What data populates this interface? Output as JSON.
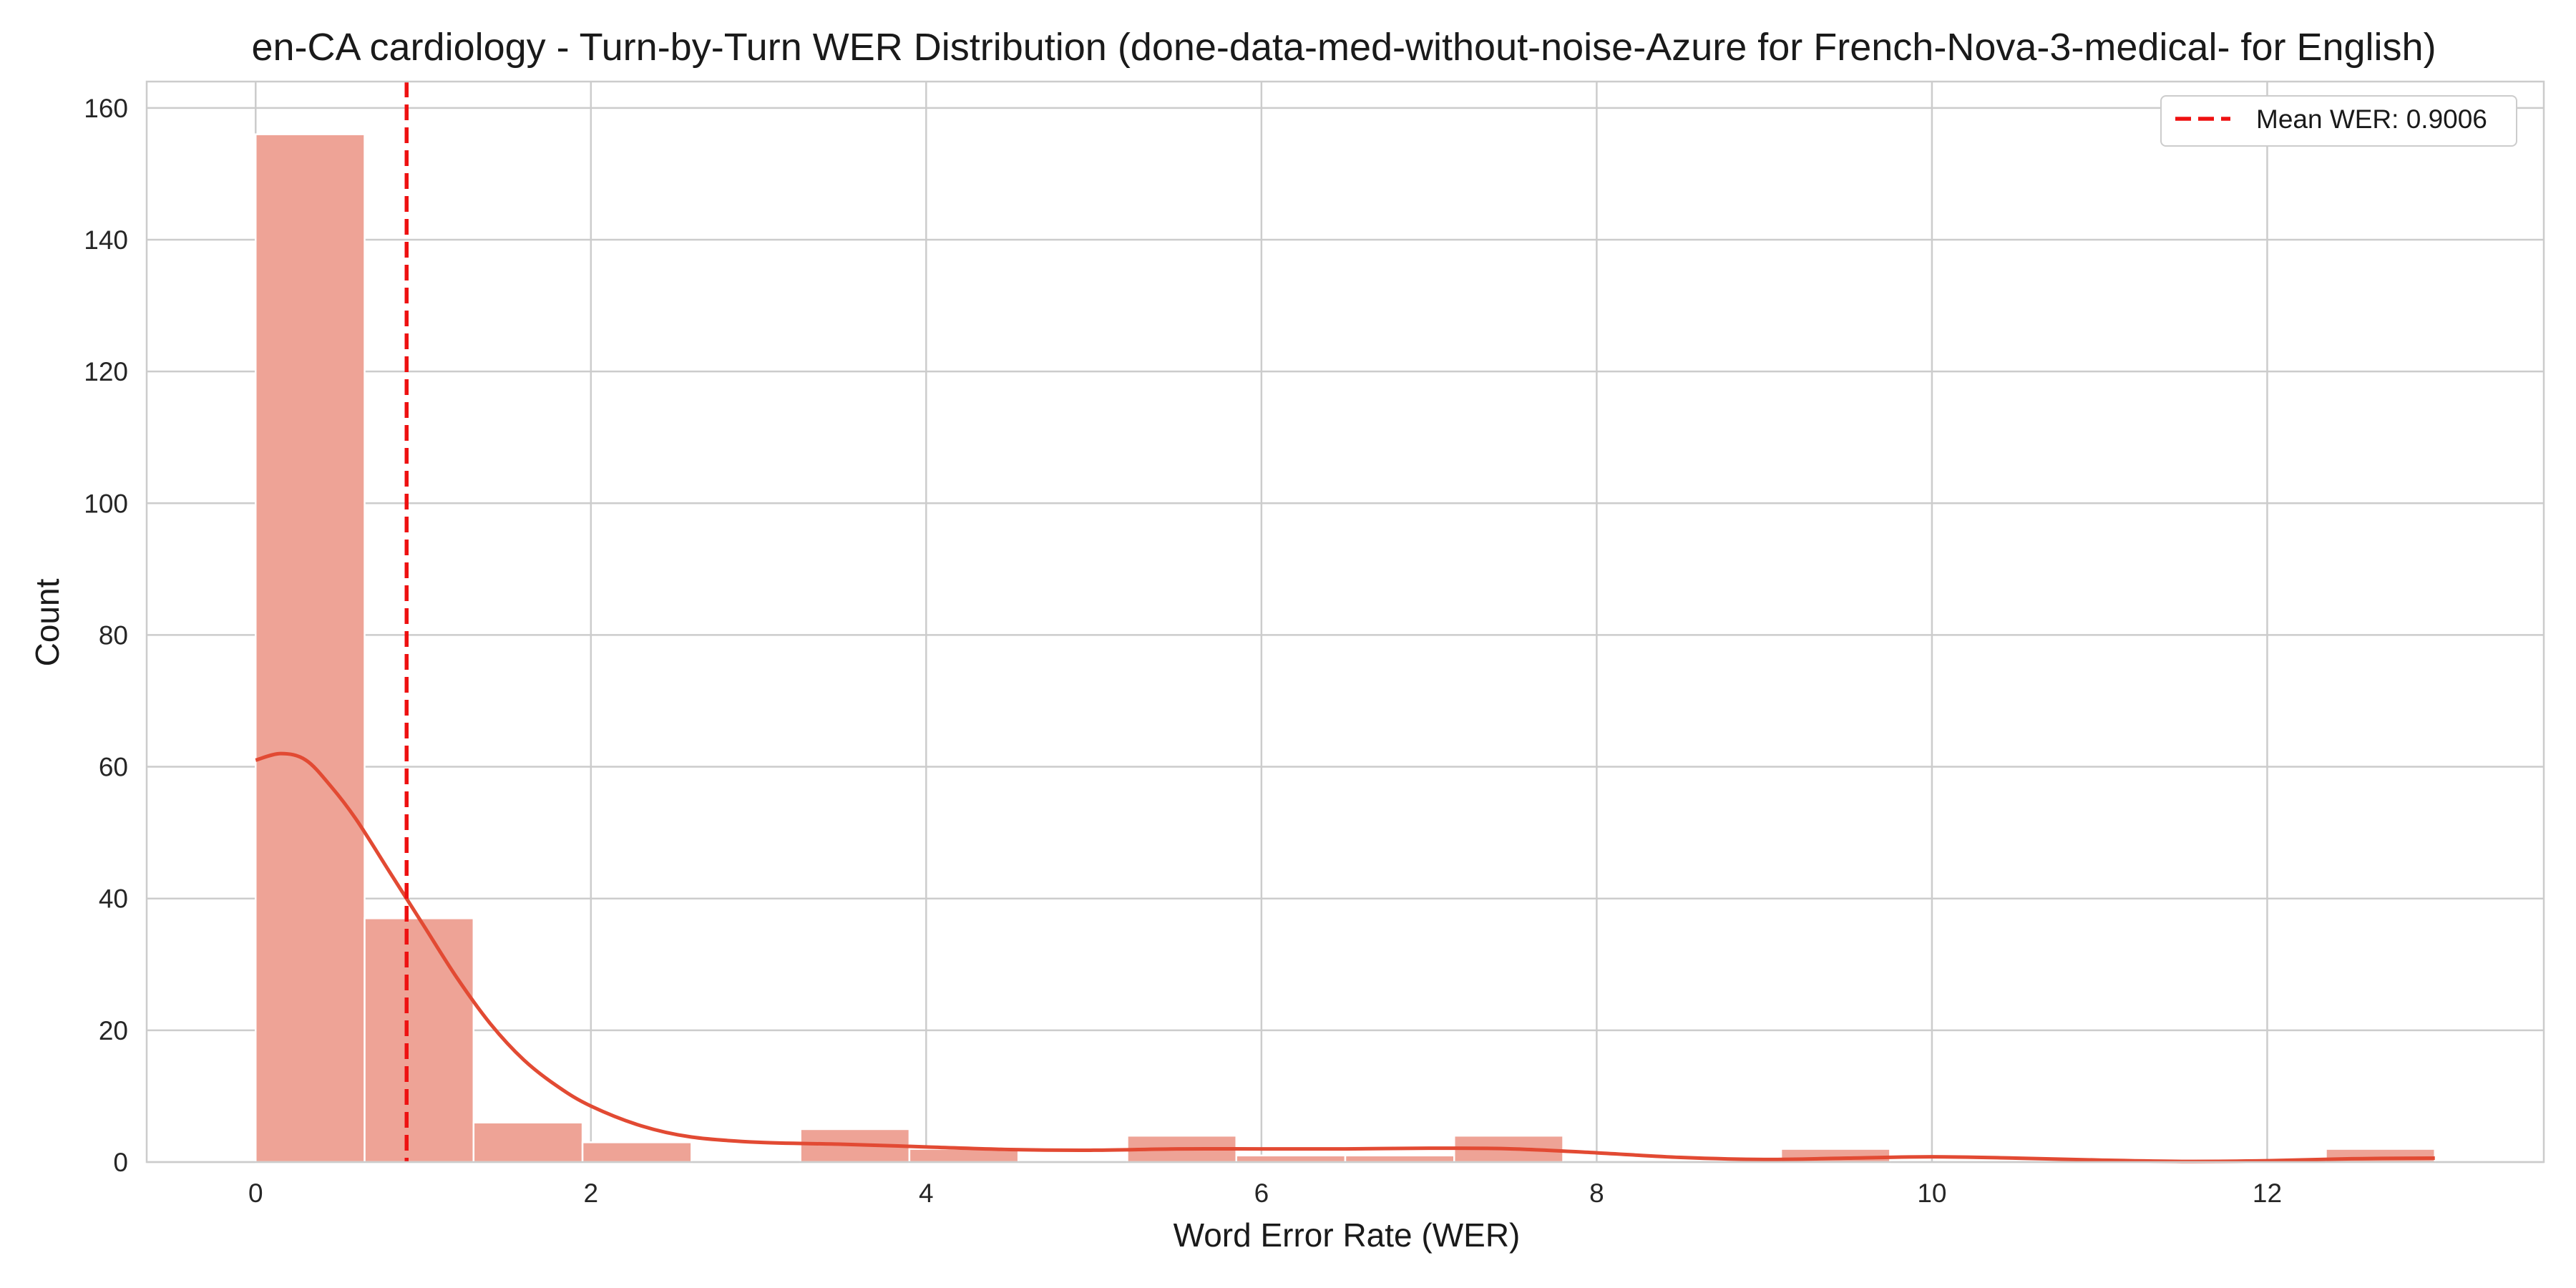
{
  "chart_data": {
    "type": "bar",
    "title": "en-CA cardiology - Turn-by-Turn WER Distribution (done-data-med-without-noise-Azure for French-Nova-3-medical- for English)",
    "xlabel": "Word Error Rate (WER)",
    "ylabel": "Count",
    "xlim": [
      -0.65,
      13.65
    ],
    "ylim": [
      0,
      164
    ],
    "x_ticks": [
      0,
      2,
      4,
      6,
      8,
      10,
      12
    ],
    "y_ticks": [
      0,
      20,
      40,
      60,
      80,
      100,
      120,
      140,
      160
    ],
    "grid": true,
    "bins": {
      "edges": [
        0,
        0.65,
        1.3,
        1.95,
        2.6,
        3.25,
        3.9,
        4.55,
        5.2,
        5.85,
        6.5,
        7.15,
        7.8,
        8.45,
        9.1,
        9.75,
        10.4,
        11.05,
        11.7,
        12.35,
        13.0
      ],
      "counts": [
        156,
        37,
        6,
        3,
        0,
        5,
        2,
        0,
        4,
        1,
        1,
        4,
        0,
        0,
        2,
        0,
        0,
        0,
        0,
        2
      ]
    },
    "kde": {
      "x": [
        0,
        0.15,
        0.3,
        0.45,
        0.6,
        0.8,
        1.0,
        1.2,
        1.4,
        1.6,
        1.8,
        2.0,
        2.3,
        2.6,
        3.0,
        3.5,
        4.0,
        4.5,
        5.0,
        5.5,
        6.0,
        6.5,
        7.0,
        7.5,
        8.0,
        8.5,
        9.0,
        9.5,
        10.0,
        10.5,
        11.0,
        11.5,
        12.0,
        12.5,
        13.0
      ],
      "y": [
        61,
        62,
        61,
        57,
        52,
        44,
        36,
        28,
        21,
        15.5,
        11.5,
        8.5,
        5.5,
        3.8,
        3.0,
        2.7,
        2.3,
        1.9,
        1.8,
        2.0,
        2.0,
        2.0,
        2.1,
        2.0,
        1.4,
        0.7,
        0.4,
        0.6,
        0.8,
        0.6,
        0.3,
        0.1,
        0.2,
        0.5,
        0.6
      ]
    },
    "mean_line": {
      "x": 0.9006,
      "label": "Mean WER: 0.9006"
    },
    "legend": {
      "position": "top-right",
      "entries": [
        "Mean WER: 0.9006"
      ]
    },
    "colors": {
      "bar_fill": "#eea396",
      "bar_edge": "#ffffff",
      "kde": "#e24a33",
      "mean_line": "#ee1111",
      "grid": "#cccccc",
      "axes_edge": "#cccccc"
    }
  }
}
